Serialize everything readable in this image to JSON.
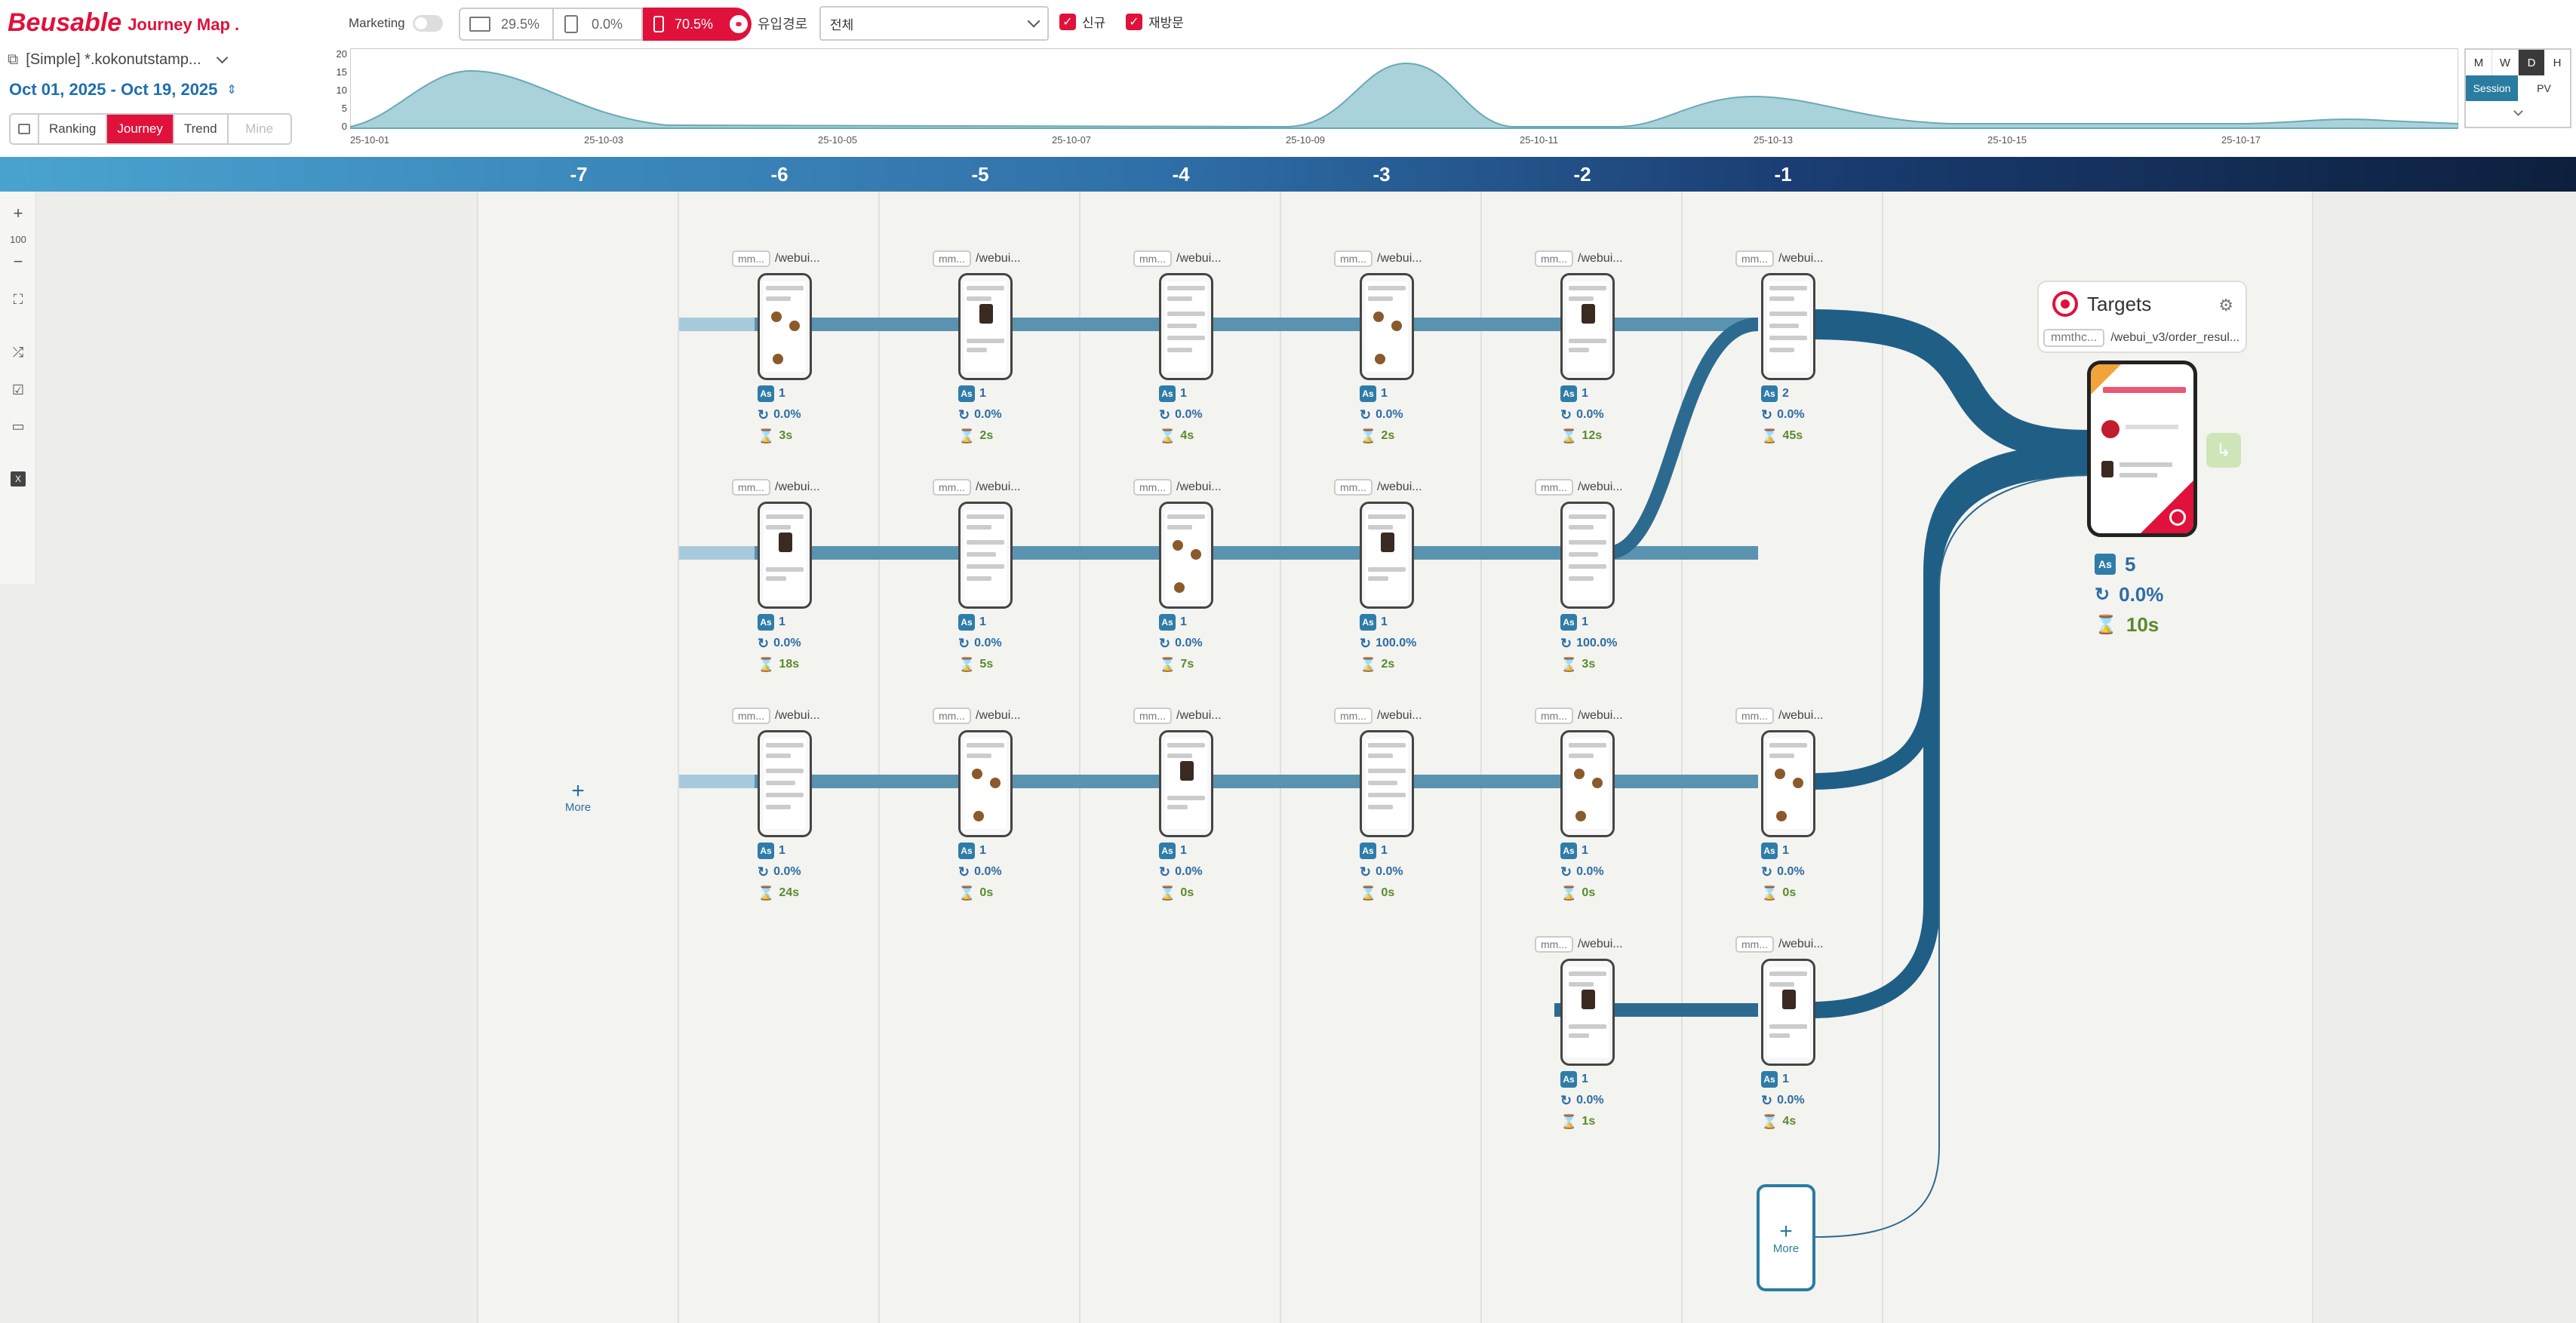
{
  "brand": {
    "name": "Beusable",
    "product": "Journey Map ."
  },
  "toolbar": {
    "marketing_label": "Marketing",
    "device_desktop": "29.5%",
    "device_tablet": "0.0%",
    "device_mobile": "70.5%",
    "inflow_label": "유입경로",
    "inflow_value": "전체",
    "new_label": "신규",
    "revisit_label": "재방문"
  },
  "project": {
    "name": "[Simple] *.kokonutstamp...",
    "date_range": "Oct 01, 2025 - Oct 19, 2025"
  },
  "tabs": [
    "Ranking",
    "Journey",
    "Trend",
    "Mine"
  ],
  "active_tab": "Journey",
  "timeline": {
    "y_ticks": [
      "20",
      "15",
      "10",
      "5",
      "0"
    ],
    "x_ticks": [
      "25-10-01",
      "25-10-03",
      "25-10-05",
      "25-10-07",
      "25-10-09",
      "25-10-11",
      "25-10-13",
      "25-10-15",
      "25-10-17"
    ],
    "granularity": [
      "M",
      "W",
      "D",
      "H"
    ],
    "active_granularity": "D",
    "metric": [
      "Session",
      "PV"
    ],
    "active_metric": "Session"
  },
  "zoom": {
    "level": "100"
  },
  "columns": [
    "-7",
    "-6",
    "-5",
    "-4",
    "-3",
    "-2",
    "-1"
  ],
  "more_label": "More",
  "node_prefix": "mm...",
  "node_path": "/webui...",
  "stages": [
    [
      {
        "count": "1",
        "rate": "0.0%",
        "time": "3s"
      },
      {
        "count": "1",
        "rate": "0.0%",
        "time": "18s"
      },
      {
        "count": "1",
        "rate": "0.0%",
        "time": "24s"
      }
    ],
    [
      {
        "count": "1",
        "rate": "0.0%",
        "time": "2s"
      },
      {
        "count": "1",
        "rate": "0.0%",
        "time": "5s"
      },
      {
        "count": "1",
        "rate": "0.0%",
        "time": "0s"
      }
    ],
    [
      {
        "count": "1",
        "rate": "0.0%",
        "time": "4s"
      },
      {
        "count": "1",
        "rate": "0.0%",
        "time": "7s"
      },
      {
        "count": "1",
        "rate": "0.0%",
        "time": "0s"
      }
    ],
    [
      {
        "count": "1",
        "rate": "0.0%",
        "time": "2s"
      },
      {
        "count": "1",
        "rate": "100.0%",
        "time": "2s"
      },
      {
        "count": "1",
        "rate": "0.0%",
        "time": "0s"
      }
    ],
    [
      {
        "count": "1",
        "rate": "0.0%",
        "time": "12s"
      },
      {
        "count": "1",
        "rate": "100.0%",
        "time": "3s"
      },
      {
        "count": "1",
        "rate": "0.0%",
        "time": "0s"
      },
      {
        "count": "1",
        "rate": "0.0%",
        "time": "1s"
      }
    ],
    [
      {
        "count": "2",
        "rate": "0.0%",
        "time": "45s"
      },
      {
        "count": "1",
        "rate": "0.0%",
        "time": "0s"
      },
      {
        "count": "1",
        "rate": "0.0%",
        "time": "4s"
      }
    ]
  ],
  "target": {
    "title": "Targets",
    "prefix": "mmthc...",
    "path": "/webui_v3/order_resul...",
    "count": "5",
    "rate": "0.0%",
    "time": "10s"
  },
  "colors": {
    "brand": "#e0113b",
    "flow": "#2d6a8f",
    "header_start": "#4aa3cf",
    "header_end": "#0d1f3d"
  }
}
